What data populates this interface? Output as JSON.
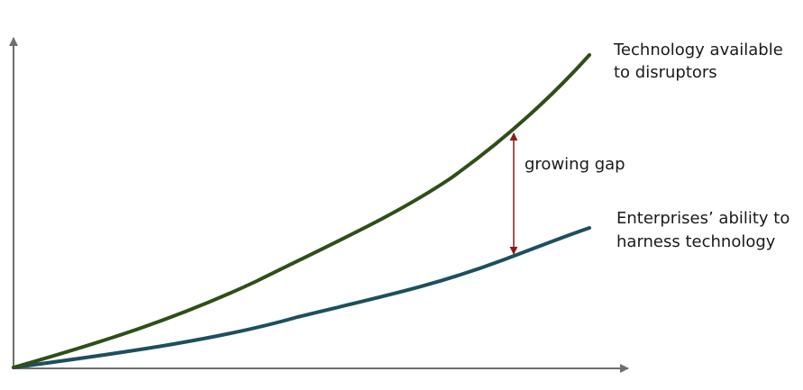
{
  "labels": {
    "upper_line": [
      "Technology available",
      "to disruptors"
    ],
    "lower_line": [
      "Enterprises’ ability to",
      "harness technology"
    ],
    "gap": "growing gap"
  },
  "colors": {
    "axis": "#6e6e6e",
    "upper_line": "#2d5016",
    "lower_line": "#1d4f5f",
    "gap_arrow": "#8b1a1a"
  }
}
